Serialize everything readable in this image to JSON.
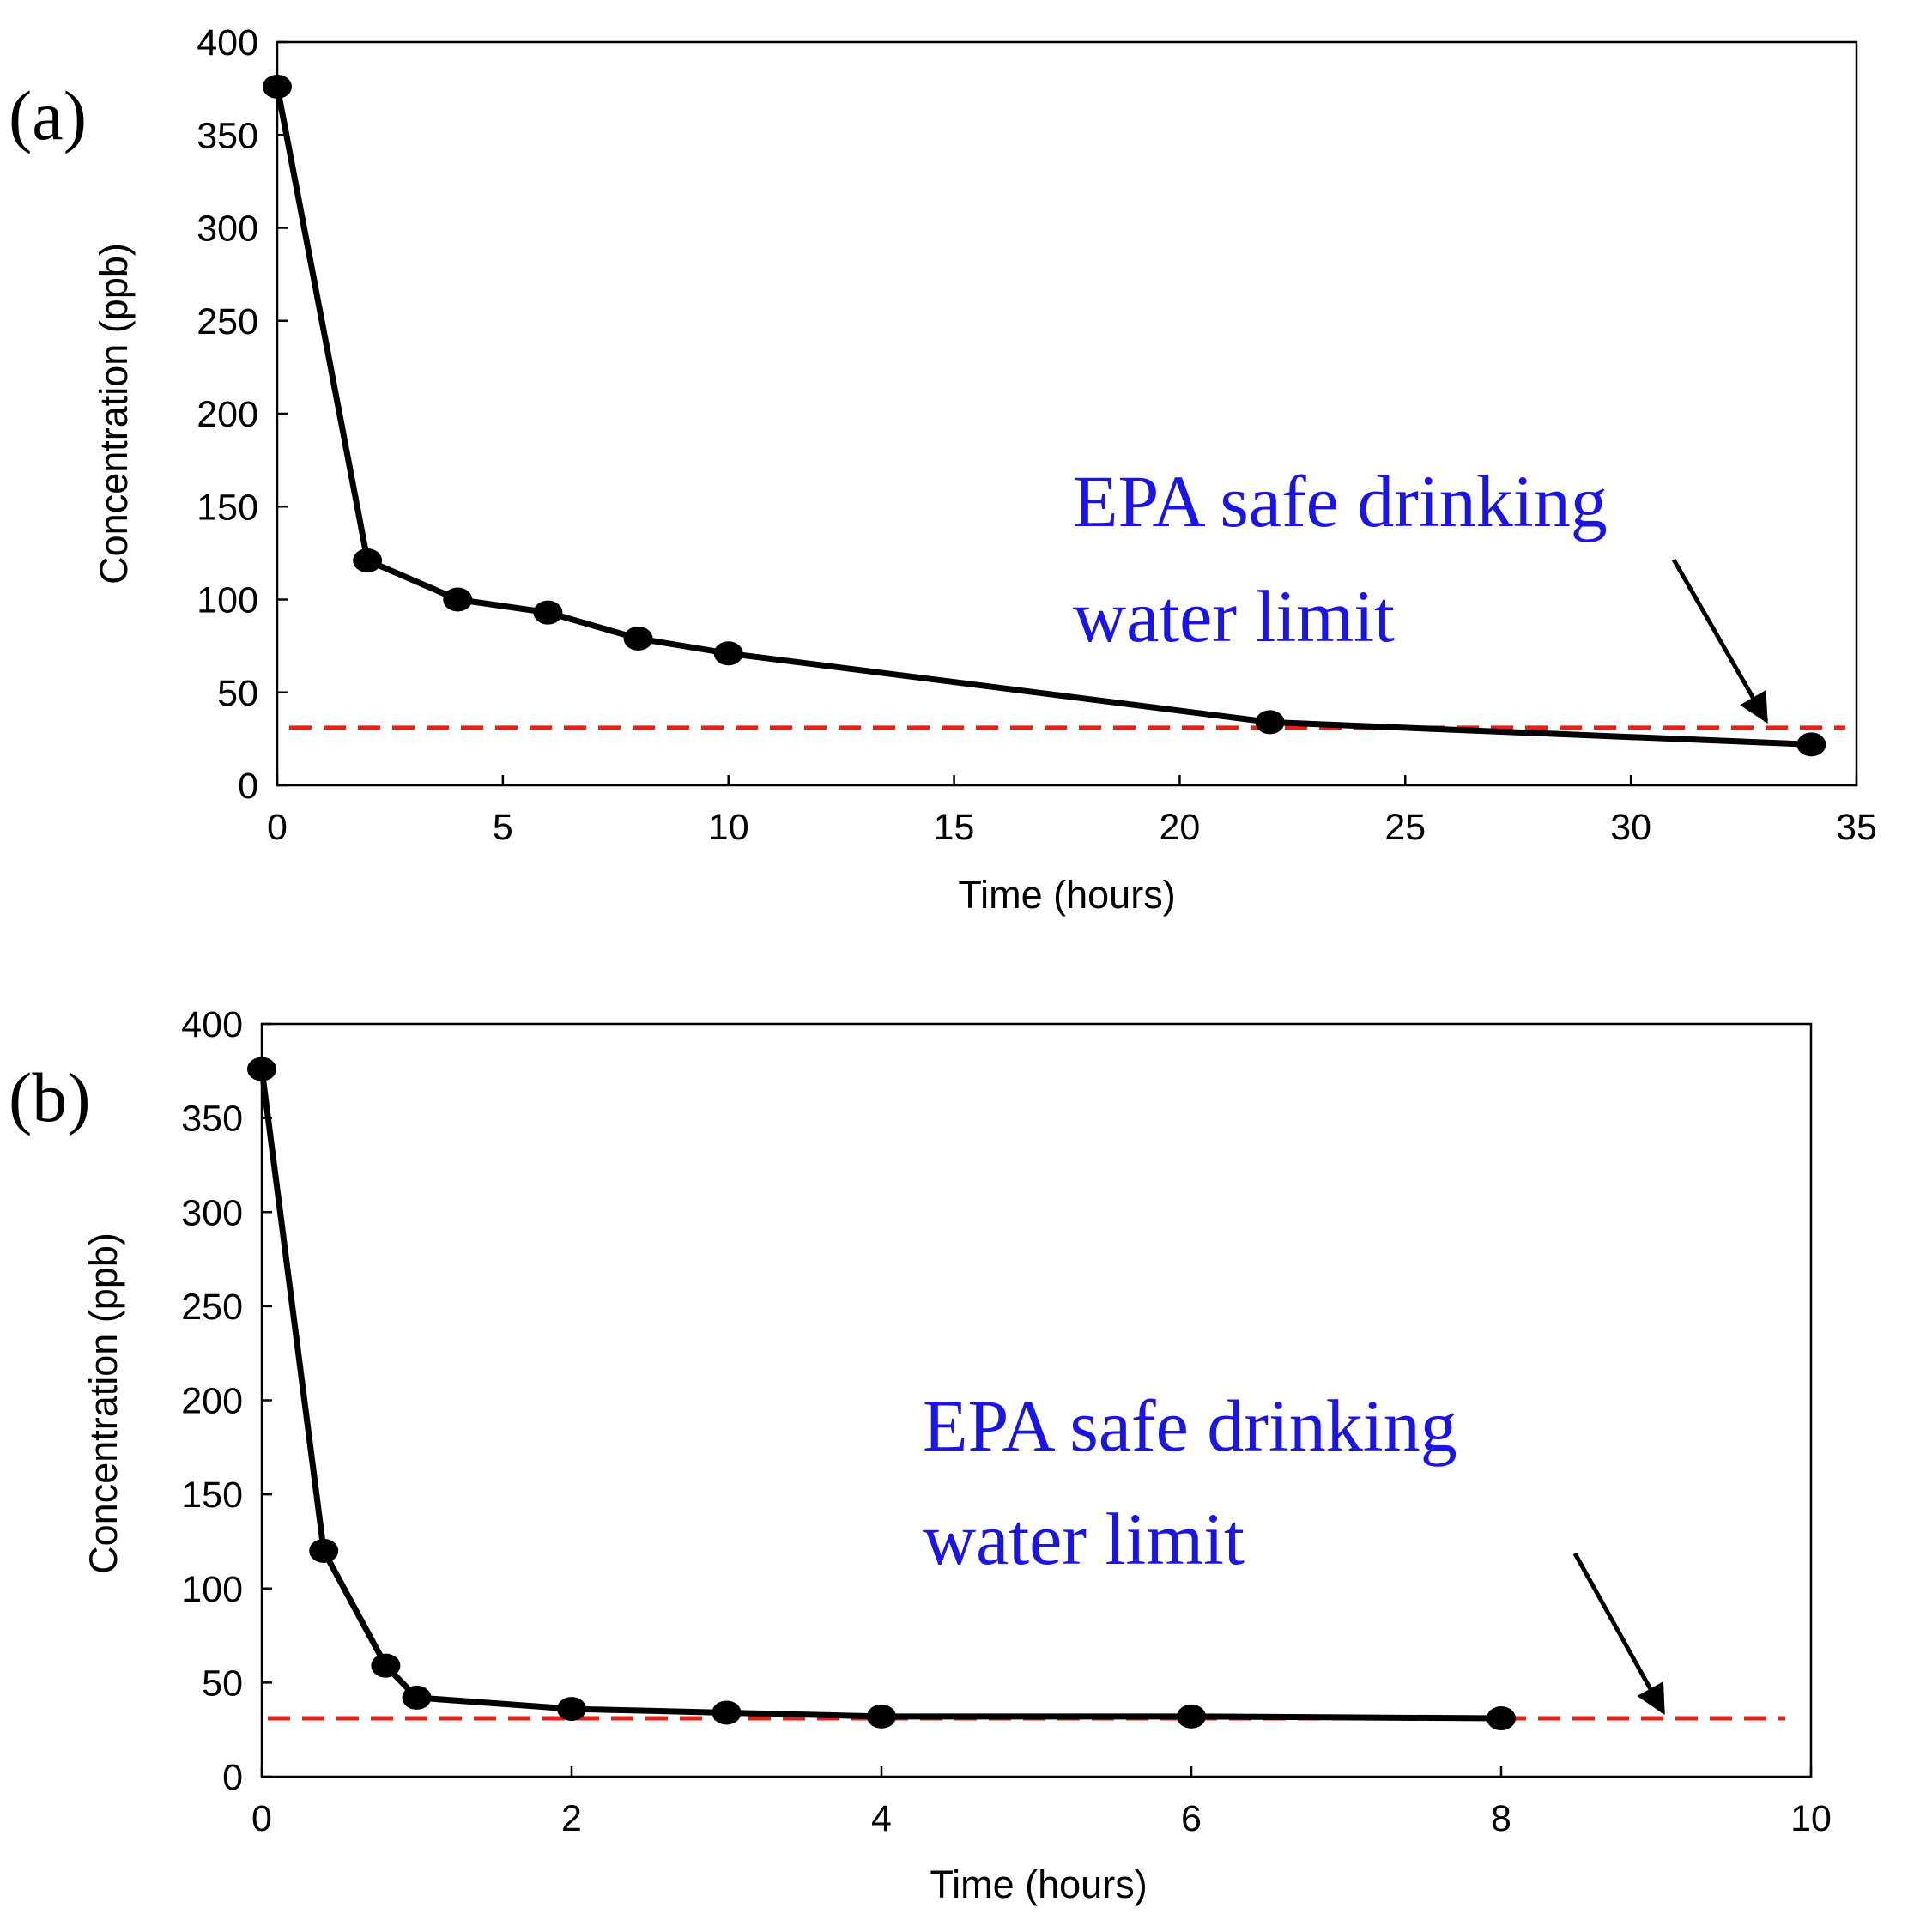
{
  "colors": {
    "series": "#000000",
    "limit_line": "#e8201a",
    "annotation": "#1a14e6"
  },
  "chart_data": [
    {
      "type": "line",
      "panel_label": "(a)",
      "xlabel": "Time (hours)",
      "ylabel": "Concentration (ppb)",
      "xlim": [
        0,
        35
      ],
      "ylim": [
        0,
        400
      ],
      "xticks": [
        0,
        5,
        10,
        15,
        20,
        25,
        30,
        35
      ],
      "yticks": [
        0,
        50,
        100,
        150,
        200,
        250,
        300,
        350,
        400
      ],
      "grid": false,
      "series": [
        {
          "name": "Concentration",
          "x": [
            0,
            2,
            4,
            6,
            8,
            10,
            22,
            34
          ],
          "y": [
            376,
            121,
            100,
            93,
            79,
            71,
            34,
            22
          ]
        }
      ],
      "reference_line": {
        "y": 31,
        "style": "dashed"
      },
      "annotation": {
        "line1": "EPA  safe  drinking",
        "line2": "water limit"
      }
    },
    {
      "type": "line",
      "panel_label": "(b)",
      "xlabel": "Time (hours)",
      "ylabel": "Concentration (ppb)",
      "xlim": [
        0,
        10
      ],
      "ylim": [
        0,
        400
      ],
      "xticks": [
        0,
        2,
        4,
        6,
        8,
        10
      ],
      "yticks": [
        0,
        50,
        100,
        150,
        200,
        250,
        300,
        350,
        400
      ],
      "grid": false,
      "series": [
        {
          "name": "Concentration",
          "x": [
            0,
            0.4,
            0.8,
            1,
            2,
            3,
            4,
            6,
            8
          ],
          "y": [
            376,
            120,
            59,
            42,
            36,
            34,
            32,
            32,
            31
          ]
        }
      ],
      "reference_line": {
        "y": 31,
        "style": "dashed"
      },
      "annotation": {
        "line1": "EPA  safe  drinking",
        "line2": "water limit"
      }
    }
  ]
}
